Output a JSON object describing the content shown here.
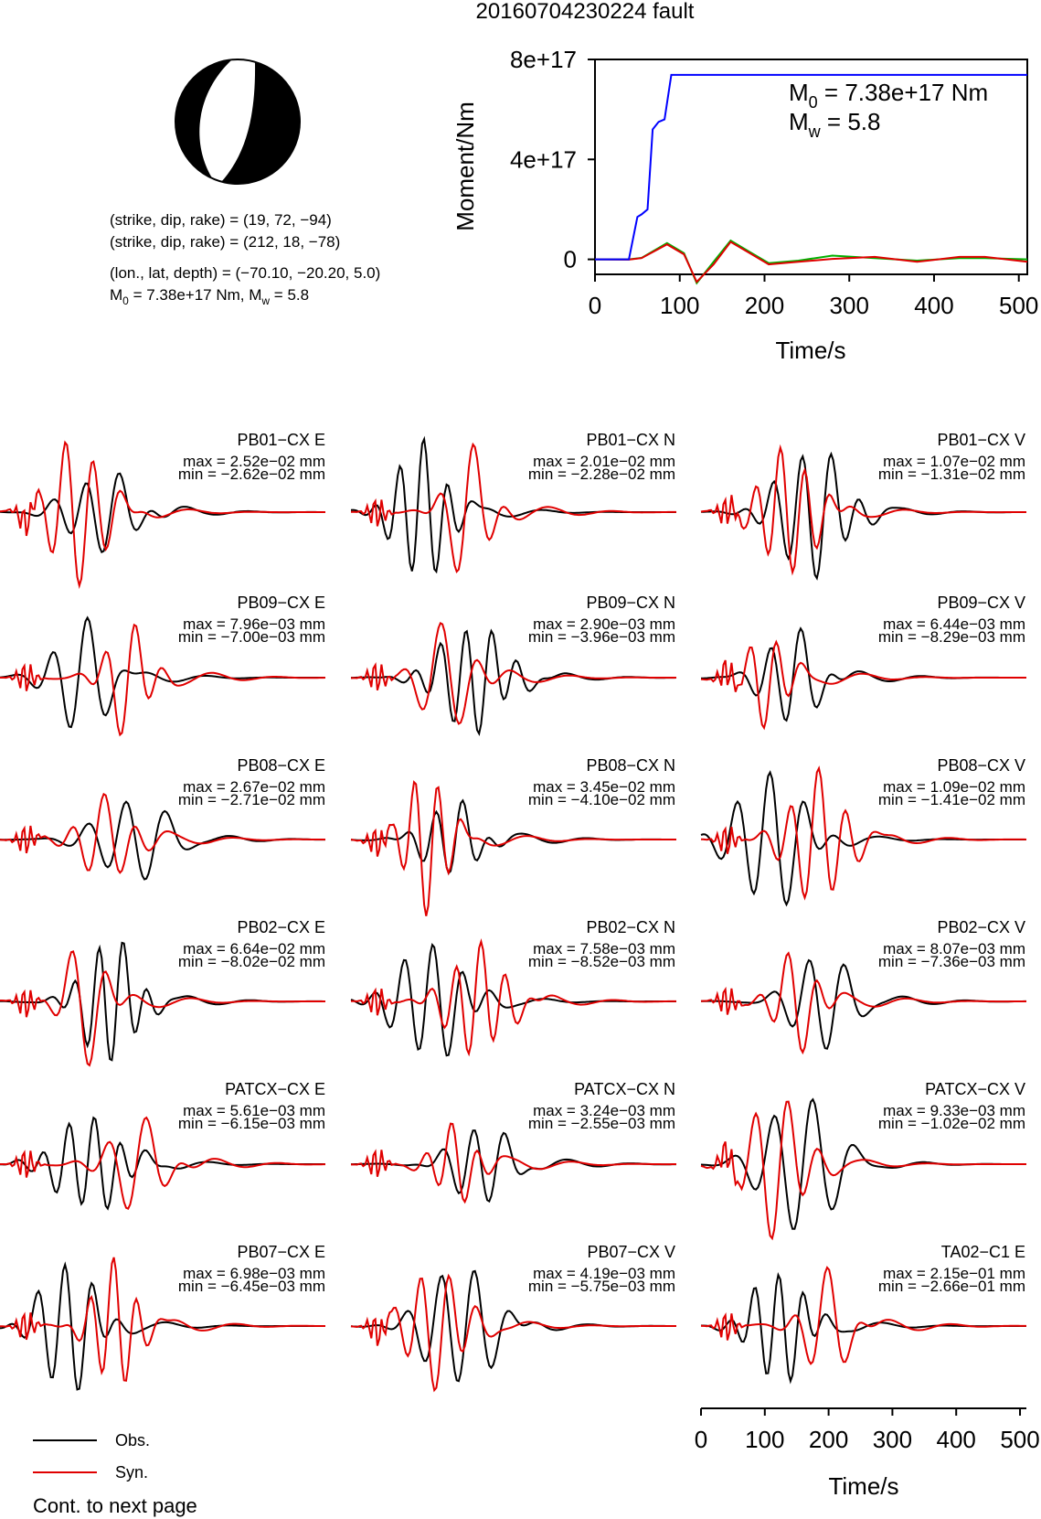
{
  "title": "20160704230224 fault",
  "info": {
    "line1": "(strike, dip, rake) = (19, 72, −94)",
    "line2": "(strike, dip, rake) = (212, 18, −78)",
    "line3": "(lon., lat, depth) = (−70.10, −20.20, 5.0)",
    "line4_m0": "7.38e+17",
    "line4_mw": "5.8"
  },
  "colors": {
    "obs": "#000000",
    "syn": "#e00000",
    "moment": "#0000ff",
    "syn2": "#00b000"
  },
  "chart_data": [
    {
      "type": "line",
      "ylabel": "Moment/Nm",
      "xlabel": "Time/s",
      "xlim": [
        0,
        510
      ],
      "ylim": [
        -6e+16,
        8e+17
      ],
      "xticks": [
        "0",
        "100",
        "200",
        "300",
        "400",
        "500"
      ],
      "yticks": [
        "0",
        "4e+17",
        "8e+17"
      ],
      "annotation_m0": "7.38e+17",
      "annotation_mw": "5.8",
      "series": [
        {
          "color": "#0000ff",
          "x": [
            0,
            40,
            50,
            55,
            62,
            68,
            75,
            82,
            90,
            100,
            510
          ],
          "y": [
            0,
            0,
            1.7e+17,
            1.8e+17,
            2e+17,
            5.2e+17,
            5.5e+17,
            5.6e+17,
            7.38e+17,
            7.38e+17,
            7.38e+17
          ]
        },
        {
          "color": "#e00000",
          "x": [
            0,
            40,
            55,
            85,
            105,
            120,
            140,
            160,
            185,
            205,
            240,
            280,
            330,
            380,
            430,
            460,
            510
          ],
          "y": [
            0,
            -1000000000000000.0,
            5000000000000000.0,
            6e+16,
            2e+16,
            -9e+16,
            -2e+16,
            7e+16,
            2e+16,
            -2e+16,
            -1e+16,
            2000000000000000.0,
            1e+16,
            -1e+16,
            1e+16,
            1e+16,
            -1e+16
          ]
        },
        {
          "color": "#00b000",
          "x": [
            0,
            40,
            55,
            85,
            105,
            120,
            140,
            160,
            185,
            205,
            240,
            280,
            330,
            380,
            430,
            460,
            510
          ],
          "y": [
            0,
            0,
            6000000000000000.0,
            6.5e+16,
            2.5e+16,
            -9.5e+16,
            -1e+16,
            7.5e+16,
            2.5e+16,
            -1.5e+16,
            -5000000000000000.0,
            1.5e+16,
            5000000000000000.0,
            -5000000000000000.0,
            5000000000000000.0,
            5000000000000000.0,
            0.0
          ]
        }
      ]
    },
    {
      "type": "line",
      "xlabel": "Time/s",
      "xlim": [
        0,
        510
      ],
      "xticks": [
        "0",
        "100",
        "200",
        "300",
        "400",
        "500"
      ],
      "traces": [
        {
          "label": "PB01−CX E",
          "max": "2.52e−02 mm",
          "min": "−2.62e−02 mm"
        },
        {
          "label": "PB01−CX N",
          "max": "2.01e−02 mm",
          "min": "−2.28e−02 mm"
        },
        {
          "label": "PB01−CX V",
          "max": "1.07e−02 mm",
          "min": "−1.31e−02 mm"
        },
        {
          "label": "PB09−CX E",
          "max": "7.96e−03 mm",
          "min": "−7.00e−03 mm"
        },
        {
          "label": "PB09−CX N",
          "max": "2.90e−03 mm",
          "min": "−3.96e−03 mm"
        },
        {
          "label": "PB09−CX V",
          "max": "6.44e−03 mm",
          "min": "−8.29e−03 mm"
        },
        {
          "label": "PB08−CX E",
          "max": "2.67e−02 mm",
          "min": "−2.71e−02 mm"
        },
        {
          "label": "PB08−CX N",
          "max": "3.45e−02 mm",
          "min": "−4.10e−02 mm"
        },
        {
          "label": "PB08−CX V",
          "max": "1.09e−02 mm",
          "min": "−1.41e−02 mm"
        },
        {
          "label": "PB02−CX E",
          "max": "6.64e−02 mm",
          "min": "−8.02e−02 mm"
        },
        {
          "label": "PB02−CX N",
          "max": "7.58e−03 mm",
          "min": "−8.52e−03 mm"
        },
        {
          "label": "PB02−CX V",
          "max": "8.07e−03 mm",
          "min": "−7.36e−03 mm"
        },
        {
          "label": "PATCX−CX E",
          "max": "5.61e−03 mm",
          "min": "−6.15e−03 mm"
        },
        {
          "label": "PATCX−CX N",
          "max": "3.24e−03 mm",
          "min": "−2.55e−03 mm"
        },
        {
          "label": "PATCX−CX V",
          "max": "9.33e−03 mm",
          "min": "−1.02e−02 mm"
        },
        {
          "label": "PB07−CX E",
          "max": "6.98e−03 mm",
          "min": "−6.45e−03 mm"
        },
        {
          "label": "PB07−CX V",
          "max": "4.19e−03 mm",
          "min": "−5.75e−03 mm"
        },
        {
          "label": "TA02−C1 E",
          "max": "2.15e−01 mm",
          "min": "−2.66e−01 mm"
        }
      ]
    }
  ],
  "legend": {
    "obs": "Obs.",
    "syn": "Syn."
  },
  "footer": "Cont. to next page"
}
